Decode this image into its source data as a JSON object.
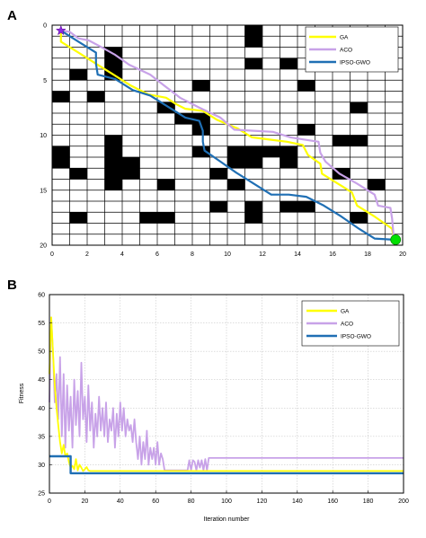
{
  "chart_data": [
    {
      "type": "line",
      "panel_label": "A",
      "grid_size": [
        20,
        20
      ],
      "xlim": [
        0,
        20
      ],
      "ylim": [
        0,
        20
      ],
      "y_reversed": true,
      "xticks": [
        0,
        2,
        4,
        6,
        8,
        10,
        12,
        14,
        16,
        18,
        20
      ],
      "yticks": [
        0,
        5,
        10,
        15,
        20
      ],
      "obstacles": [
        [
          11,
          0
        ],
        [
          11,
          1
        ],
        [
          3,
          2
        ],
        [
          3,
          3
        ],
        [
          11,
          3
        ],
        [
          13,
          3
        ],
        [
          17,
          3
        ],
        [
          1,
          4
        ],
        [
          3,
          4
        ],
        [
          8,
          5
        ],
        [
          14,
          5
        ],
        [
          0,
          6
        ],
        [
          2,
          6
        ],
        [
          6,
          7
        ],
        [
          17,
          7
        ],
        [
          7,
          8
        ],
        [
          8,
          8
        ],
        [
          8,
          9
        ],
        [
          14,
          9
        ],
        [
          16,
          10
        ],
        [
          17,
          10
        ],
        [
          3,
          10
        ],
        [
          10,
          11
        ],
        [
          11,
          11
        ],
        [
          12,
          11
        ],
        [
          13,
          11
        ],
        [
          0,
          11
        ],
        [
          0,
          12
        ],
        [
          3,
          11
        ],
        [
          3,
          12
        ],
        [
          4,
          12
        ],
        [
          8,
          11
        ],
        [
          10,
          12
        ],
        [
          11,
          12
        ],
        [
          13,
          12
        ],
        [
          1,
          13
        ],
        [
          3,
          13
        ],
        [
          4,
          13
        ],
        [
          9,
          13
        ],
        [
          16,
          13
        ],
        [
          3,
          14
        ],
        [
          6,
          14
        ],
        [
          10,
          14
        ],
        [
          18,
          14
        ],
        [
          9,
          16
        ],
        [
          11,
          16
        ],
        [
          13,
          16
        ],
        [
          14,
          16
        ],
        [
          11,
          17
        ],
        [
          1,
          17
        ],
        [
          5,
          17
        ],
        [
          6,
          17
        ],
        [
          17,
          17
        ]
      ],
      "start_marker": "star",
      "goal_marker": "circle",
      "series": [
        {
          "name": "GA",
          "color": "#ffff00",
          "points": [
            [
              0.5,
              0.5
            ],
            [
              0.5,
              1.5
            ],
            [
              1.5,
              2.5
            ],
            [
              2.5,
              3.5
            ],
            [
              3.5,
              4.5
            ],
            [
              4.5,
              5.5
            ],
            [
              5.5,
              6.3
            ],
            [
              6.5,
              6.6
            ],
            [
              7.1,
              7.2
            ],
            [
              7.6,
              7.6
            ],
            [
              8.6,
              7.8
            ],
            [
              9.4,
              8.6
            ],
            [
              10.6,
              9.4
            ],
            [
              11.4,
              10.2
            ],
            [
              12.4,
              10.4
            ],
            [
              13.4,
              10.6
            ],
            [
              14.3,
              10.9
            ],
            [
              14.6,
              11.8
            ],
            [
              15.3,
              12.6
            ],
            [
              15.4,
              13.5
            ],
            [
              16.3,
              14.4
            ],
            [
              17.1,
              15.2
            ],
            [
              17.4,
              16.4
            ],
            [
              18.4,
              17.4
            ],
            [
              19.4,
              18.5
            ],
            [
              19.5,
              19.5
            ]
          ]
        },
        {
          "name": "ACO",
          "color": "#c8a2e8",
          "points": [
            [
              0.5,
              0.5
            ],
            [
              1.0,
              0.6
            ],
            [
              1.5,
              1.2
            ],
            [
              2.1,
              1.4
            ],
            [
              2.7,
              1.9
            ],
            [
              3.6,
              2.7
            ],
            [
              4.4,
              3.6
            ],
            [
              5.6,
              4.5
            ],
            [
              6.4,
              5.5
            ],
            [
              7.3,
              6.6
            ],
            [
              8.4,
              7.5
            ],
            [
              9.6,
              8.4
            ],
            [
              10.4,
              9.5
            ],
            [
              11.5,
              9.6
            ],
            [
              12.6,
              9.7
            ],
            [
              13.6,
              10.2
            ],
            [
              14.4,
              10.4
            ],
            [
              15.2,
              10.6
            ],
            [
              15.3,
              11.6
            ],
            [
              15.6,
              12.4
            ],
            [
              16.4,
              13.5
            ],
            [
              17.4,
              14.4
            ],
            [
              18.4,
              15.4
            ],
            [
              18.6,
              16.4
            ],
            [
              19.3,
              16.6
            ],
            [
              19.4,
              17.6
            ],
            [
              19.5,
              19.5
            ]
          ]
        },
        {
          "name": "IPSO-GWO",
          "color": "#1f6fb4",
          "points": [
            [
              0.5,
              0.5
            ],
            [
              1.5,
              1.5
            ],
            [
              2.5,
              2.5
            ],
            [
              2.5,
              3.5
            ],
            [
              2.6,
              4.5
            ],
            [
              3.6,
              4.9
            ],
            [
              4.6,
              5.9
            ],
            [
              5.6,
              6.4
            ],
            [
              6.6,
              7.4
            ],
            [
              7.6,
              8.4
            ],
            [
              8.4,
              8.7
            ],
            [
              8.6,
              9.6
            ],
            [
              8.6,
              10.6
            ],
            [
              8.7,
              11.4
            ],
            [
              9.6,
              12.4
            ],
            [
              10.5,
              13.4
            ],
            [
              11.5,
              14.4
            ],
            [
              12.5,
              15.4
            ],
            [
              13.5,
              15.4
            ],
            [
              14.5,
              15.6
            ],
            [
              15.5,
              16.4
            ],
            [
              16.5,
              17.4
            ],
            [
              17.5,
              18.5
            ],
            [
              18.4,
              19.4
            ],
            [
              19.5,
              19.5
            ]
          ]
        }
      ]
    },
    {
      "type": "line",
      "panel_label": "B",
      "xlabel": "Iteration number",
      "ylabel": "Fitness",
      "xlim": [
        0,
        200
      ],
      "ylim": [
        25,
        60
      ],
      "xticks": [
        0,
        20,
        40,
        60,
        80,
        100,
        120,
        140,
        160,
        180,
        200
      ],
      "yticks": [
        25,
        30,
        35,
        40,
        45,
        50,
        55,
        60
      ],
      "legend_position": "top-right",
      "series": [
        {
          "name": "GA",
          "color": "#ffff00",
          "x": [
            0,
            1,
            2,
            3,
            4,
            5,
            6,
            7,
            8,
            9,
            10,
            11,
            12,
            13,
            14,
            15,
            16,
            17,
            18,
            19,
            20,
            21,
            22,
            23,
            200
          ],
          "y": [
            46,
            56,
            50,
            44,
            40,
            37,
            34,
            32,
            33.5,
            31.5,
            32,
            30.5,
            29.5,
            29.8,
            29.2,
            31,
            29,
            30,
            29.5,
            28.9,
            29.2,
            29.6,
            29,
            28.9,
            28.9
          ]
        },
        {
          "name": "ACO",
          "color": "#c8a2e8",
          "x": [
            0,
            1,
            2,
            3,
            4,
            5,
            6,
            7,
            8,
            9,
            10,
            11,
            12,
            13,
            14,
            15,
            16,
            17,
            18,
            19,
            20,
            21,
            22,
            23,
            24,
            25,
            26,
            27,
            28,
            29,
            30,
            31,
            32,
            33,
            34,
            35,
            36,
            37,
            38,
            39,
            40,
            41,
            42,
            43,
            44,
            45,
            46,
            47,
            48,
            49,
            50,
            51,
            52,
            53,
            54,
            55,
            56,
            57,
            58,
            59,
            60,
            61,
            62,
            63,
            64,
            65,
            66,
            67,
            68,
            69,
            70,
            71,
            72,
            73,
            74,
            75,
            76,
            77,
            78,
            79,
            80,
            81,
            82,
            83,
            84,
            85,
            86,
            87,
            88,
            89,
            90,
            91,
            200
          ],
          "y": [
            41,
            56,
            50,
            41,
            46,
            38,
            49,
            35,
            46,
            33,
            44,
            36,
            42,
            33,
            45,
            37,
            43,
            35,
            48,
            38,
            42,
            34,
            44,
            36,
            41,
            33,
            39,
            35,
            42,
            36,
            40,
            35,
            41,
            34,
            38,
            36,
            40,
            33,
            39,
            35,
            41,
            36,
            40,
            35,
            38,
            36,
            37,
            34,
            38,
            34,
            31,
            35,
            30,
            34,
            31,
            36,
            30,
            33,
            31,
            33,
            30,
            34,
            30,
            32,
            31,
            29,
            29,
            29,
            29,
            29,
            29,
            29,
            29,
            29,
            29,
            29,
            29,
            29,
            29,
            30.8,
            29,
            30.8,
            30.5,
            29,
            30.8,
            29.5,
            30.8,
            29,
            31,
            29,
            31.2,
            31.2,
            31.2
          ]
        },
        {
          "name": "IPSO-GWO",
          "color": "#1f6fb4",
          "x": [
            0,
            12,
            12,
            200
          ],
          "y": [
            31.5,
            31.5,
            28.5,
            28.5
          ]
        }
      ]
    }
  ]
}
